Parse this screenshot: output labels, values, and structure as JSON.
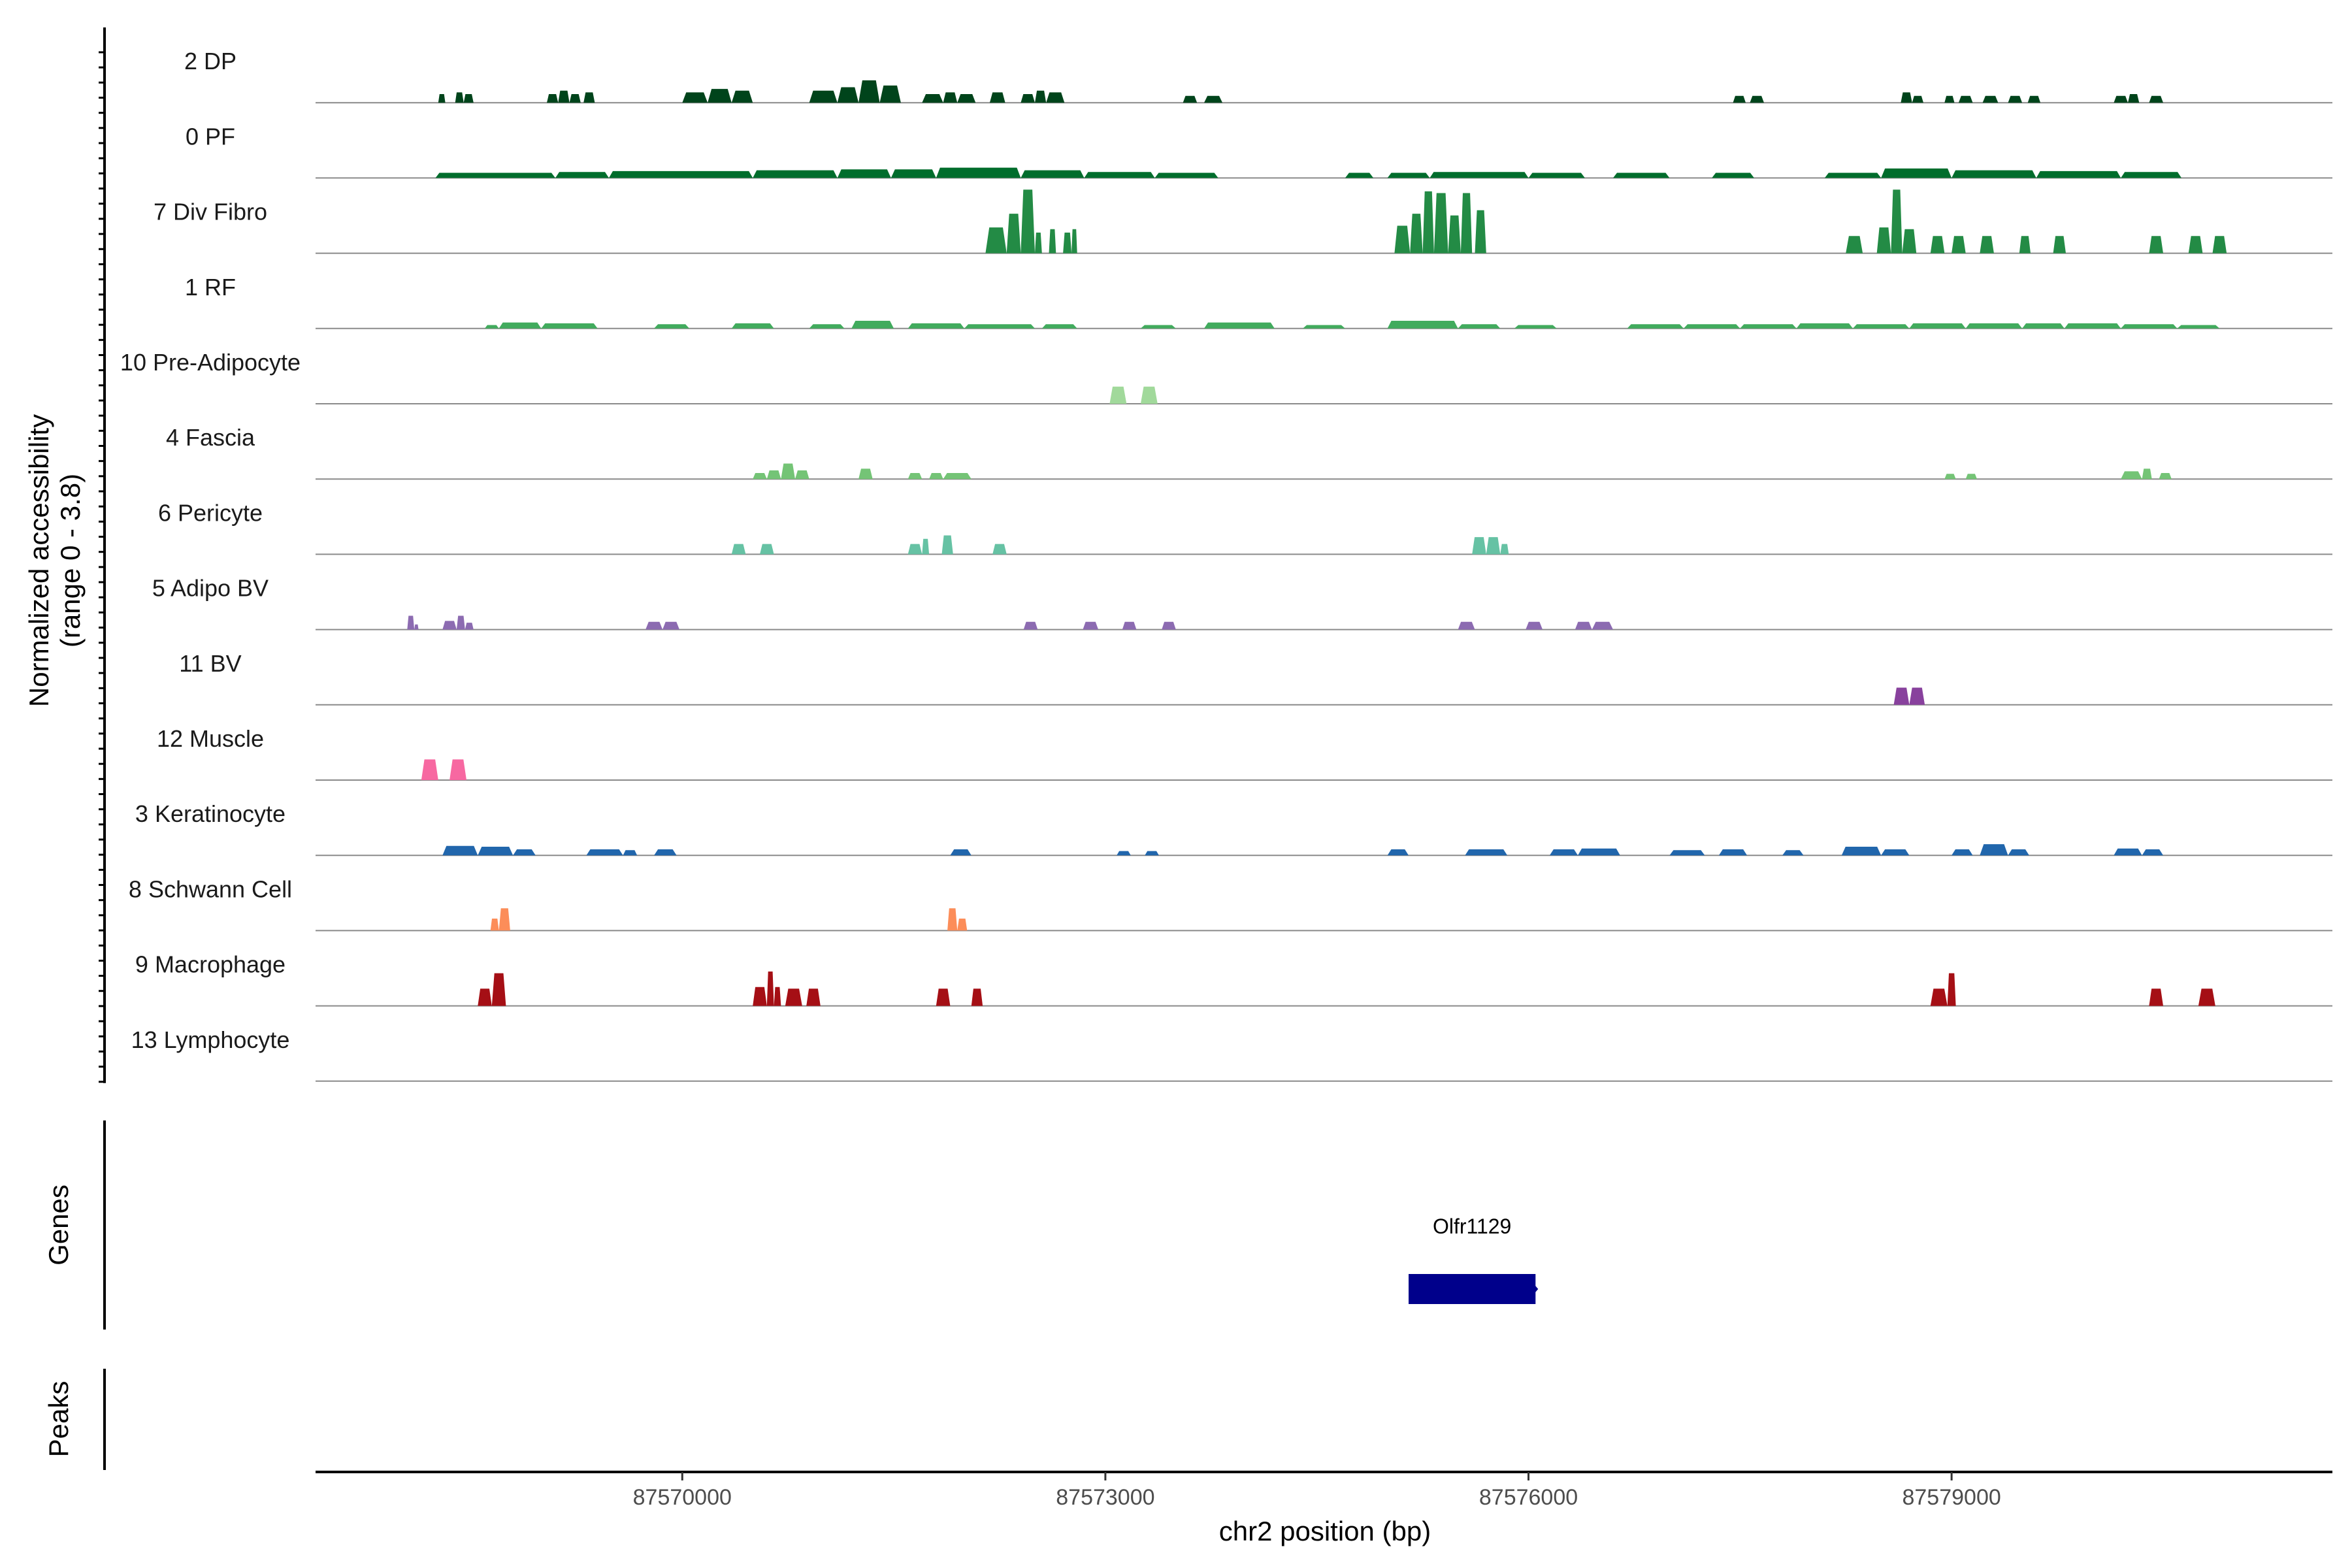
{
  "chart_data": {
    "type": "area",
    "title": "",
    "ylabel": "Normalized accessibility\n(range 0 - 3.8)",
    "xlabel": "chr2 position (bp)",
    "chromosome": "chr2",
    "xlim": [
      87567400,
      87581700
    ],
    "ylim": [
      0,
      3.8
    ],
    "x_ticks": [
      87570000,
      87573000,
      87576000,
      87579000
    ],
    "x_tick_labels": [
      "87570000",
      "87573000",
      "87576000",
      "87579000"
    ],
    "series": [
      {
        "name": "2 DP",
        "color": "#00441b",
        "peaks": [
          [
            87568270,
            87568320,
            0.5
          ],
          [
            87568390,
            87568450,
            0.6
          ],
          [
            87568450,
            87568520,
            0.5
          ],
          [
            87569040,
            87569120,
            0.5
          ],
          [
            87569120,
            87569200,
            0.7
          ],
          [
            87569200,
            87569280,
            0.5
          ],
          [
            87569300,
            87569380,
            0.6
          ],
          [
            87570000,
            87570180,
            0.6
          ],
          [
            87570180,
            87570350,
            0.8
          ],
          [
            87570350,
            87570500,
            0.7
          ],
          [
            87570900,
            87571100,
            0.7
          ],
          [
            87571100,
            87571250,
            0.9
          ],
          [
            87571250,
            87571400,
            1.3
          ],
          [
            87571400,
            87571550,
            1.0
          ],
          [
            87571700,
            87571850,
            0.5
          ],
          [
            87571850,
            87571950,
            0.6
          ],
          [
            87571950,
            87572080,
            0.5
          ],
          [
            87572180,
            87572290,
            0.6
          ],
          [
            87572400,
            87572500,
            0.5
          ],
          [
            87572500,
            87572580,
            0.7
          ],
          [
            87572580,
            87572710,
            0.6
          ],
          [
            87573550,
            87573650,
            0.4
          ],
          [
            87573700,
            87573830,
            0.4
          ],
          [
            87577450,
            87577540,
            0.4
          ],
          [
            87577570,
            87577670,
            0.4
          ],
          [
            87578640,
            87578720,
            0.6
          ],
          [
            87578720,
            87578800,
            0.4
          ],
          [
            87578950,
            87579020,
            0.4
          ],
          [
            87579050,
            87579150,
            0.4
          ],
          [
            87579220,
            87579330,
            0.4
          ],
          [
            87579400,
            87579500,
            0.4
          ],
          [
            87579540,
            87579630,
            0.4
          ],
          [
            87580150,
            87580250,
            0.4
          ],
          [
            87580250,
            87580330,
            0.5
          ],
          [
            87580400,
            87580500,
            0.4
          ]
        ]
      },
      {
        "name": "0 PF",
        "color": "#006d2c",
        "peaks": [
          [
            87568250,
            87569100,
            0.3
          ],
          [
            87569100,
            87569480,
            0.35
          ],
          [
            87569480,
            87570500,
            0.4
          ],
          [
            87570500,
            87571100,
            0.45
          ],
          [
            87571100,
            87571480,
            0.5
          ],
          [
            87571480,
            87571800,
            0.5
          ],
          [
            87571800,
            87572400,
            0.6
          ],
          [
            87572400,
            87572850,
            0.45
          ],
          [
            87572850,
            87573350,
            0.35
          ],
          [
            87573350,
            87573800,
            0.3
          ],
          [
            87574700,
            87574900,
            0.3
          ],
          [
            87575000,
            87575300,
            0.3
          ],
          [
            87575300,
            87576000,
            0.35
          ],
          [
            87576000,
            87576400,
            0.3
          ],
          [
            87576600,
            87577000,
            0.3
          ],
          [
            87577300,
            87577600,
            0.3
          ],
          [
            87578100,
            87578500,
            0.3
          ],
          [
            87578500,
            87579000,
            0.55
          ],
          [
            87579000,
            87579600,
            0.45
          ],
          [
            87579600,
            87580200,
            0.4
          ],
          [
            87580200,
            87580630,
            0.35
          ]
        ]
      },
      {
        "name": "7 Div Fibro",
        "color": "#238b45",
        "peaks": [
          [
            87572150,
            87572300,
            1.5
          ],
          [
            87572300,
            87572400,
            2.3
          ],
          [
            87572400,
            87572500,
            3.7
          ],
          [
            87572500,
            87572550,
            1.2
          ],
          [
            87572600,
            87572650,
            1.4
          ],
          [
            87572700,
            87572760,
            1.2
          ],
          [
            87572760,
            87572800,
            1.4
          ],
          [
            87575050,
            87575160,
            1.6
          ],
          [
            87575160,
            87575250,
            2.3
          ],
          [
            87575250,
            87575330,
            3.6
          ],
          [
            87575330,
            87575430,
            3.5
          ],
          [
            87575430,
            87575520,
            2.2
          ],
          [
            87575520,
            87575600,
            3.5
          ],
          [
            87575620,
            87575700,
            2.5
          ],
          [
            87578250,
            87578370,
            1.0
          ],
          [
            87578470,
            87578570,
            1.5
          ],
          [
            87578570,
            87578650,
            3.7
          ],
          [
            87578650,
            87578750,
            1.4
          ],
          [
            87578850,
            87578950,
            1.0
          ],
          [
            87579000,
            87579100,
            1.0
          ],
          [
            87579200,
            87579300,
            1.0
          ],
          [
            87579480,
            87579560,
            1.0
          ],
          [
            87579720,
            87579810,
            1.0
          ],
          [
            87580400,
            87580500,
            1.0
          ],
          [
            87580680,
            87580780,
            1.0
          ],
          [
            87580850,
            87580950,
            1.0
          ]
        ]
      },
      {
        "name": "1 RF",
        "color": "#41ab5d",
        "peaks": [
          [
            87568600,
            87568700,
            0.2
          ],
          [
            87568700,
            87569000,
            0.35
          ],
          [
            87569000,
            87569400,
            0.3
          ],
          [
            87569800,
            87570050,
            0.25
          ],
          [
            87570350,
            87570650,
            0.3
          ],
          [
            87570900,
            87571150,
            0.25
          ],
          [
            87571200,
            87571500,
            0.45
          ],
          [
            87571600,
            87572000,
            0.3
          ],
          [
            87572000,
            87572500,
            0.25
          ],
          [
            87572550,
            87572800,
            0.25
          ],
          [
            87573250,
            87573500,
            0.2
          ],
          [
            87573700,
            87574200,
            0.35
          ],
          [
            87574400,
            87574700,
            0.2
          ],
          [
            87575000,
            87575500,
            0.45
          ],
          [
            87575500,
            87575800,
            0.25
          ],
          [
            87575900,
            87576200,
            0.2
          ],
          [
            87576700,
            87577100,
            0.25
          ],
          [
            87577100,
            87577500,
            0.25
          ],
          [
            87577500,
            87577900,
            0.25
          ],
          [
            87577900,
            87578300,
            0.3
          ],
          [
            87578300,
            87578700,
            0.25
          ],
          [
            87578700,
            87579100,
            0.3
          ],
          [
            87579100,
            87579500,
            0.3
          ],
          [
            87579500,
            87579800,
            0.3
          ],
          [
            87579800,
            87580200,
            0.3
          ],
          [
            87580200,
            87580600,
            0.25
          ],
          [
            87580600,
            87580900,
            0.2
          ]
        ]
      },
      {
        "name": "10 Pre-Adipocyte",
        "color": "#a1d99b",
        "peaks": [
          [
            87573030,
            87573150,
            1.0
          ],
          [
            87573250,
            87573370,
            1.0
          ]
        ]
      },
      {
        "name": "4 Fascia",
        "color": "#74c476",
        "peaks": [
          [
            87570500,
            87570600,
            0.35
          ],
          [
            87570600,
            87570700,
            0.5
          ],
          [
            87570700,
            87570800,
            0.9
          ],
          [
            87570800,
            87570900,
            0.5
          ],
          [
            87571250,
            87571350,
            0.6
          ],
          [
            87571600,
            87571700,
            0.35
          ],
          [
            87571750,
            87571850,
            0.35
          ],
          [
            87571850,
            87572050,
            0.35
          ],
          [
            87578950,
            87579030,
            0.3
          ],
          [
            87579100,
            87579180,
            0.3
          ],
          [
            87580200,
            87580350,
            0.45
          ],
          [
            87580350,
            87580420,
            0.6
          ],
          [
            87580470,
            87580560,
            0.35
          ]
        ]
      },
      {
        "name": "6 Pericyte",
        "color": "#66c2a4",
        "peaks": [
          [
            87570350,
            87570450,
            0.6
          ],
          [
            87570550,
            87570650,
            0.6
          ],
          [
            87571600,
            87571700,
            0.6
          ],
          [
            87571700,
            87571750,
            0.9
          ],
          [
            87571840,
            87571920,
            1.1
          ],
          [
            87572200,
            87572300,
            0.6
          ],
          [
            87575600,
            87575700,
            1.0
          ],
          [
            87575700,
            87575800,
            1.0
          ],
          [
            87575800,
            87575860,
            0.6
          ]
        ]
      },
      {
        "name": "5 Adipo BV",
        "color": "#8c6bb1",
        "peaks": [
          [
            87568050,
            87568100,
            0.8
          ],
          [
            87568100,
            87568130,
            0.3
          ],
          [
            87568300,
            87568400,
            0.5
          ],
          [
            87568400,
            87568460,
            0.8
          ],
          [
            87568460,
            87568520,
            0.4
          ],
          [
            87569740,
            87569860,
            0.45
          ],
          [
            87569860,
            87569980,
            0.45
          ],
          [
            87572420,
            87572520,
            0.45
          ],
          [
            87572840,
            87572950,
            0.45
          ],
          [
            87573120,
            87573220,
            0.45
          ],
          [
            87573400,
            87573500,
            0.45
          ],
          [
            87575500,
            87575620,
            0.45
          ],
          [
            87575980,
            87576100,
            0.45
          ],
          [
            87576330,
            87576450,
            0.45
          ],
          [
            87576450,
            87576600,
            0.45
          ]
        ]
      },
      {
        "name": "11 BV",
        "color": "#88419d",
        "peaks": [
          [
            87578590,
            87578700,
            1.0
          ],
          [
            87578700,
            87578810,
            1.0
          ]
        ]
      },
      {
        "name": "12 Muscle",
        "color": "#f768a1",
        "peaks": [
          [
            87568150,
            87568270,
            1.2
          ],
          [
            87568350,
            87568470,
            1.2
          ]
        ]
      },
      {
        "name": "3 Keratinocyte",
        "color": "#2166ac",
        "peaks": [
          [
            87568300,
            87568550,
            0.55
          ],
          [
            87568550,
            87568800,
            0.5
          ],
          [
            87568800,
            87568960,
            0.35
          ],
          [
            87569320,
            87569580,
            0.35
          ],
          [
            87569580,
            87569680,
            0.3
          ],
          [
            87569800,
            87569960,
            0.35
          ],
          [
            87571900,
            87572050,
            0.35
          ],
          [
            87573080,
            87573180,
            0.25
          ],
          [
            87573280,
            87573380,
            0.25
          ],
          [
            87575000,
            87575150,
            0.35
          ],
          [
            87575550,
            87575850,
            0.35
          ],
          [
            87576150,
            87576350,
            0.35
          ],
          [
            87576350,
            87576650,
            0.4
          ],
          [
            87577000,
            87577250,
            0.3
          ],
          [
            87577350,
            87577550,
            0.35
          ],
          [
            87577800,
            87577950,
            0.3
          ],
          [
            87578220,
            87578500,
            0.5
          ],
          [
            87578500,
            87578700,
            0.35
          ],
          [
            87579000,
            87579150,
            0.35
          ],
          [
            87579200,
            87579400,
            0.65
          ],
          [
            87579400,
            87579550,
            0.35
          ],
          [
            87580150,
            87580350,
            0.4
          ],
          [
            87580350,
            87580500,
            0.35
          ]
        ]
      },
      {
        "name": "8 Schwann Cell",
        "color": "#fc8d59",
        "peaks": [
          [
            87568640,
            87568700,
            0.7
          ],
          [
            87568700,
            87568780,
            1.3
          ],
          [
            87571880,
            87571950,
            1.3
          ],
          [
            87571950,
            87572020,
            0.7
          ]
        ]
      },
      {
        "name": "9 Macrophage",
        "color": "#a50f15",
        "peaks": [
          [
            87568550,
            87568650,
            1.0
          ],
          [
            87568650,
            87568750,
            1.9
          ],
          [
            87570500,
            87570600,
            1.1
          ],
          [
            87570600,
            87570650,
            2.0
          ],
          [
            87570650,
            87570700,
            1.1
          ],
          [
            87570730,
            87570850,
            1.0
          ],
          [
            87570880,
            87570980,
            1.0
          ],
          [
            87571800,
            87571900,
            1.0
          ],
          [
            87572050,
            87572130,
            1.0
          ],
          [
            87578850,
            87578970,
            1.0
          ],
          [
            87578970,
            87579030,
            1.9
          ],
          [
            87580400,
            87580500,
            1.0
          ],
          [
            87580750,
            87580870,
            1.0
          ]
        ]
      },
      {
        "name": "13 Lymphocyte",
        "color": "#e31a1c",
        "peaks": []
      }
    ],
    "panels": [
      "Genes",
      "Peaks"
    ],
    "genes": [
      {
        "name": "Olfr1129",
        "start": 87575150,
        "end": 87576050,
        "strand": "+",
        "color": "#00008b"
      }
    ],
    "peaks": []
  }
}
